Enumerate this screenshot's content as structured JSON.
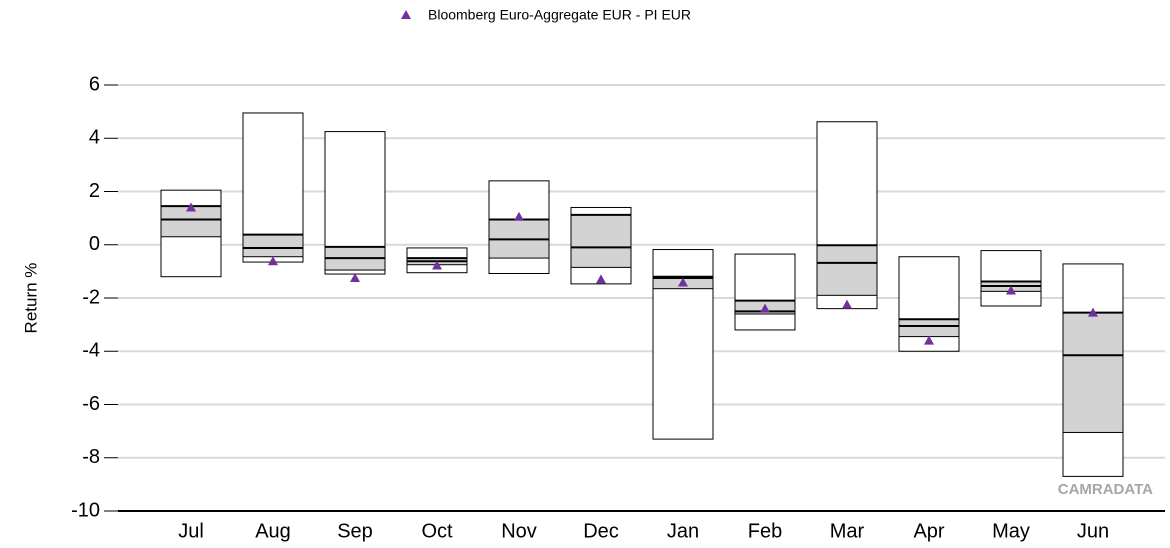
{
  "chart_data": {
    "type": "box",
    "y_label": "Return %",
    "watermark": "CAMRADATA",
    "categories": [
      "Jul",
      "Aug",
      "Sep",
      "Oct",
      "Nov",
      "Dec",
      "Jan",
      "Feb",
      "Mar",
      "Apr",
      "May",
      "Jun"
    ],
    "max": [
      2.05,
      4.95,
      4.25,
      -0.12,
      2.4,
      1.4,
      -0.18,
      -0.35,
      4.62,
      -0.45,
      -0.22,
      -0.72
    ],
    "q3": [
      1.45,
      0.38,
      -0.08,
      -0.5,
      0.95,
      1.12,
      -1.2,
      -2.1,
      -0.02,
      -2.8,
      -1.38,
      -2.55
    ],
    "median": [
      0.95,
      -0.12,
      -0.5,
      -0.62,
      0.2,
      -0.1,
      -1.25,
      -2.5,
      -0.68,
      -3.05,
      -1.55,
      -4.15
    ],
    "q1": [
      0.3,
      -0.45,
      -0.95,
      -0.75,
      -0.5,
      -0.85,
      -1.65,
      -2.6,
      -1.9,
      -3.45,
      -1.75,
      -7.05
    ],
    "min": [
      -1.2,
      -0.65,
      -1.1,
      -1.05,
      -1.08,
      -1.47,
      -7.3,
      -3.2,
      -2.4,
      -4.0,
      -2.3,
      -8.7
    ],
    "box_color": "#d3d3d3",
    "series": [
      {
        "name": "Bloomberg Euro-Aggregate EUR - PI EUR",
        "color": "#7030a0",
        "values": [
          1.4,
          -0.62,
          -1.25,
          -0.78,
          1.05,
          -1.3,
          -1.42,
          -2.4,
          -2.25,
          -3.6,
          -1.72,
          -2.55
        ]
      }
    ],
    "ylim": [
      -10,
      6
    ],
    "yticks": [
      -10,
      -8,
      -6,
      -4,
      -2,
      0,
      2,
      4,
      6
    ],
    "grid": true
  }
}
